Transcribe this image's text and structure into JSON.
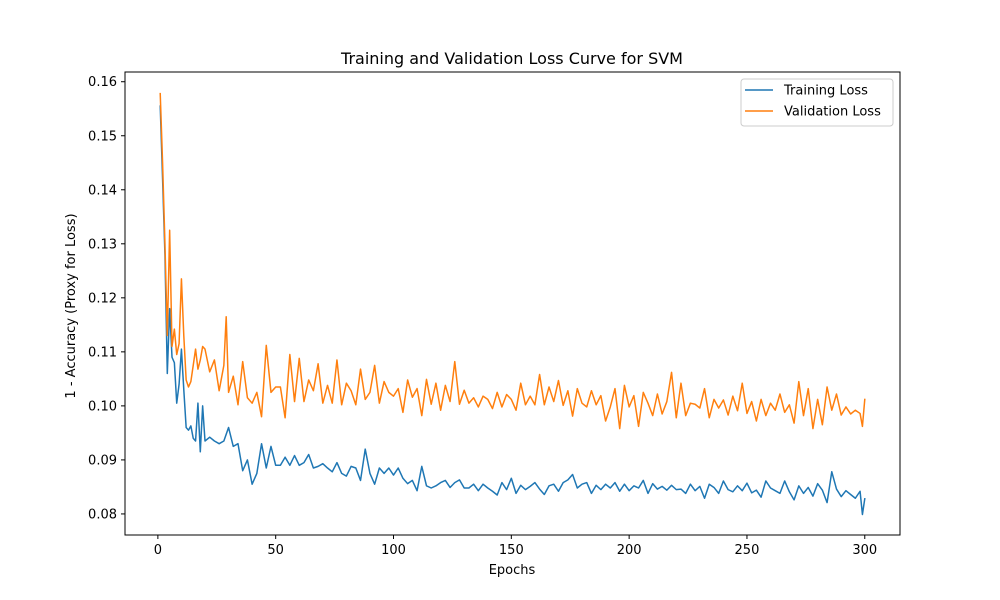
{
  "chart_data": {
    "type": "line",
    "title": "Training and Validation Loss Curve for SVM",
    "xlabel": "Epochs",
    "ylabel": "1 - Accuracy (Proxy for Loss)",
    "xlim": [
      -13.95,
      314.95
    ],
    "ylim": [
      0.0761,
      0.1618
    ],
    "xticks": [
      0,
      50,
      100,
      150,
      200,
      250,
      300
    ],
    "yticks": [
      0.08,
      0.09,
      0.1,
      0.11,
      0.12,
      0.13,
      0.14,
      0.15,
      0.16
    ],
    "ytick_labels": [
      "0.08",
      "0.09",
      "0.10",
      "0.11",
      "0.12",
      "0.13",
      "0.14",
      "0.15",
      "0.16"
    ],
    "grid": false,
    "legend": "upper right",
    "series": [
      {
        "name": "Training Loss",
        "color": "#1f77b4",
        "x": [
          1,
          2,
          3,
          4,
          5,
          6,
          7,
          8,
          9,
          10,
          11,
          12,
          13,
          14,
          15,
          16,
          17,
          18,
          19,
          20,
          22,
          24,
          26,
          28,
          30,
          32,
          34,
          36,
          38,
          40,
          42,
          44,
          46,
          48,
          50,
          52,
          54,
          56,
          58,
          60,
          62,
          64,
          66,
          68,
          70,
          72,
          74,
          76,
          78,
          80,
          82,
          84,
          86,
          88,
          90,
          92,
          94,
          96,
          98,
          100,
          102,
          104,
          106,
          108,
          110,
          112,
          114,
          116,
          118,
          120,
          122,
          124,
          126,
          128,
          130,
          132,
          134,
          136,
          138,
          140,
          142,
          144,
          146,
          148,
          150,
          152,
          154,
          156,
          158,
          160,
          162,
          164,
          166,
          168,
          170,
          172,
          174,
          176,
          178,
          180,
          182,
          184,
          186,
          188,
          190,
          192,
          194,
          196,
          198,
          200,
          202,
          204,
          206,
          208,
          210,
          212,
          214,
          216,
          218,
          220,
          222,
          224,
          226,
          228,
          230,
          232,
          234,
          236,
          238,
          240,
          242,
          244,
          246,
          248,
          250,
          252,
          254,
          256,
          258,
          260,
          262,
          264,
          266,
          268,
          270,
          272,
          274,
          276,
          278,
          280,
          282,
          284,
          286,
          288,
          290,
          292,
          294,
          296,
          298,
          299,
          300
        ],
        "y": [
          0.1555,
          0.142,
          0.128,
          0.106,
          0.118,
          0.109,
          0.108,
          0.1005,
          0.104,
          0.1105,
          0.103,
          0.096,
          0.0955,
          0.0963,
          0.094,
          0.0935,
          0.1005,
          0.0915,
          0.1,
          0.0935,
          0.0942,
          0.0935,
          0.093,
          0.0935,
          0.096,
          0.0925,
          0.093,
          0.088,
          0.09,
          0.0855,
          0.0875,
          0.093,
          0.0885,
          0.0925,
          0.089,
          0.089,
          0.0905,
          0.089,
          0.0908,
          0.089,
          0.0895,
          0.091,
          0.0885,
          0.0888,
          0.0893,
          0.0885,
          0.0878,
          0.0895,
          0.0875,
          0.087,
          0.0888,
          0.0885,
          0.0862,
          0.092,
          0.0875,
          0.0855,
          0.0885,
          0.0875,
          0.0885,
          0.0872,
          0.0885,
          0.0866,
          0.0856,
          0.0862,
          0.0843,
          0.0888,
          0.0852,
          0.0848,
          0.0852,
          0.0858,
          0.0862,
          0.0849,
          0.0858,
          0.0863,
          0.0848,
          0.0848,
          0.0855,
          0.0843,
          0.0855,
          0.0848,
          0.0842,
          0.0835,
          0.0858,
          0.0845,
          0.0866,
          0.0838,
          0.0853,
          0.0845,
          0.0851,
          0.0858,
          0.0846,
          0.0836,
          0.0852,
          0.0855,
          0.0842,
          0.0858,
          0.0863,
          0.0873,
          0.0848,
          0.0855,
          0.0858,
          0.0838,
          0.0853,
          0.0845,
          0.0855,
          0.0848,
          0.0858,
          0.0842,
          0.0855,
          0.0843,
          0.0852,
          0.0848,
          0.0862,
          0.0838,
          0.0856,
          0.0846,
          0.0851,
          0.0844,
          0.0853,
          0.0845,
          0.0846,
          0.0838,
          0.0855,
          0.0843,
          0.0851,
          0.0829,
          0.0855,
          0.0849,
          0.0838,
          0.0861,
          0.0845,
          0.0841,
          0.0852,
          0.0843,
          0.0857,
          0.0839,
          0.0844,
          0.0831,
          0.0861,
          0.0848,
          0.0843,
          0.0838,
          0.0861,
          0.0841,
          0.0826,
          0.0852,
          0.0838,
          0.0849,
          0.0833,
          0.0856,
          0.0844,
          0.0821,
          0.0878,
          0.0846,
          0.0832,
          0.0843,
          0.0836,
          0.0829,
          0.0842,
          0.0799,
          0.0828
        ]
      },
      {
        "name": "Validation Loss",
        "color": "#ff7f0e",
        "x": [
          1,
          2,
          3,
          4,
          5,
          6,
          7,
          8,
          9,
          10,
          11,
          12,
          13,
          14,
          15,
          16,
          17,
          18,
          19,
          20,
          22,
          24,
          26,
          28,
          29,
          30,
          32,
          34,
          36,
          38,
          40,
          42,
          44,
          46,
          48,
          50,
          52,
          54,
          56,
          58,
          60,
          62,
          64,
          66,
          68,
          70,
          72,
          74,
          76,
          78,
          80,
          82,
          84,
          86,
          88,
          90,
          92,
          94,
          96,
          98,
          100,
          102,
          104,
          106,
          108,
          110,
          112,
          114,
          116,
          118,
          120,
          122,
          124,
          126,
          128,
          130,
          132,
          134,
          136,
          138,
          140,
          142,
          144,
          146,
          148,
          150,
          152,
          154,
          156,
          158,
          160,
          162,
          164,
          166,
          168,
          170,
          172,
          174,
          176,
          178,
          180,
          182,
          184,
          186,
          188,
          190,
          192,
          194,
          196,
          198,
          200,
          202,
          204,
          206,
          208,
          210,
          212,
          214,
          216,
          218,
          220,
          222,
          224,
          226,
          228,
          230,
          232,
          234,
          236,
          238,
          240,
          242,
          244,
          246,
          248,
          250,
          252,
          254,
          256,
          258,
          260,
          262,
          264,
          266,
          268,
          270,
          272,
          274,
          276,
          278,
          280,
          282,
          284,
          286,
          288,
          290,
          292,
          294,
          296,
          298,
          299,
          300
        ],
        "y": [
          0.1578,
          0.145,
          0.13,
          0.113,
          0.1325,
          0.111,
          0.1142,
          0.1095,
          0.1115,
          0.1235,
          0.113,
          0.1048,
          0.1035,
          0.1045,
          0.1075,
          0.1105,
          0.1068,
          0.1085,
          0.111,
          0.1105,
          0.1063,
          0.1085,
          0.1028,
          0.1075,
          0.1165,
          0.1025,
          0.1055,
          0.1002,
          0.1082,
          0.1015,
          0.1005,
          0.1025,
          0.098,
          0.1112,
          0.1025,
          0.1035,
          0.1035,
          0.0978,
          0.1095,
          0.1008,
          0.1088,
          0.1008,
          0.1048,
          0.1028,
          0.1078,
          0.1005,
          0.1038,
          0.1005,
          0.1085,
          0.1002,
          0.1042,
          0.1028,
          0.1002,
          0.1068,
          0.1012,
          0.1025,
          0.1075,
          0.1005,
          0.1045,
          0.1025,
          0.1018,
          0.1032,
          0.0988,
          0.1048,
          0.1016,
          0.1032,
          0.0982,
          0.1049,
          0.1003,
          0.1042,
          0.0992,
          0.1038,
          0.1008,
          0.1082,
          0.1003,
          0.1029,
          0.1005,
          0.1015,
          0.0998,
          0.1018,
          0.1012,
          0.0995,
          0.1025,
          0.0998,
          0.1021,
          0.1012,
          0.0992,
          0.1042,
          0.1002,
          0.1018,
          0.1002,
          0.1058,
          0.1002,
          0.1035,
          0.1008,
          0.1047,
          0.1001,
          0.1028,
          0.0981,
          0.1032,
          0.1005,
          0.0998,
          0.1028,
          0.1002,
          0.1019,
          0.0972,
          0.0998,
          0.1032,
          0.0958,
          0.1038,
          0.0998,
          0.1019,
          0.0962,
          0.1025,
          0.1005,
          0.0982,
          0.1022,
          0.0985,
          0.1008,
          0.1062,
          0.0978,
          0.1042,
          0.0982,
          0.1005,
          0.1003,
          0.0996,
          0.1032,
          0.0978,
          0.1012,
          0.0996,
          0.1011,
          0.0983,
          0.1018,
          0.0991,
          0.1042,
          0.0986,
          0.1008,
          0.0972,
          0.1012,
          0.0982,
          0.1005,
          0.0992,
          0.1022,
          0.0988,
          0.1002,
          0.0968,
          0.1045,
          0.0982,
          0.1032,
          0.0958,
          0.1012,
          0.0965,
          0.1035,
          0.0992,
          0.1022,
          0.0983,
          0.0998,
          0.0985,
          0.0992,
          0.0986,
          0.0962,
          0.1012
        ]
      }
    ]
  }
}
